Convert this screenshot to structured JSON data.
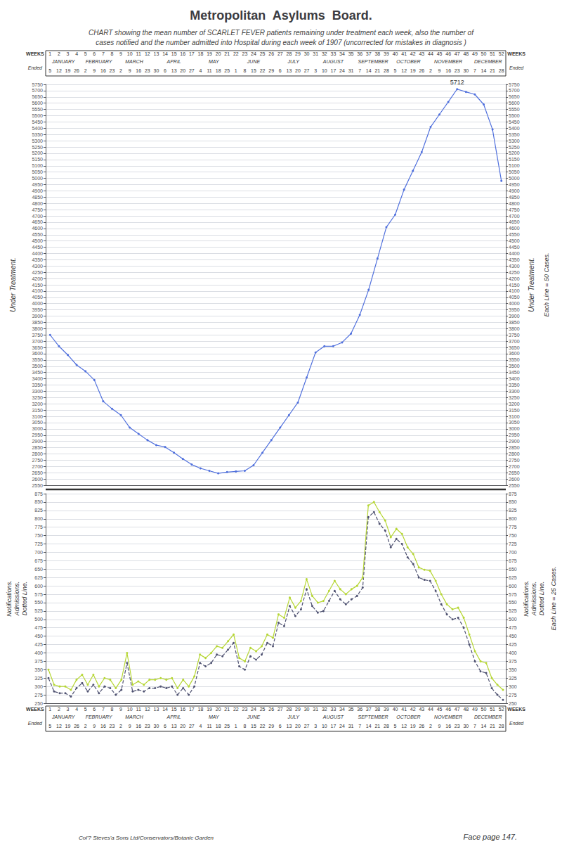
{
  "chart_data": [
    {
      "type": "line",
      "title": "Metropolitan  Asylums  Board.",
      "subtitle": "CHART showing the mean number of SCARLET FEVER patients remaining under treatment each week, also the number of\ncases notified and the number admitted into Hospital during each week of 1907 (uncorrected for mistakes in diagnosis )",
      "categories": [
        "1",
        "2",
        "3",
        "4",
        "5",
        "6",
        "7",
        "8",
        "9",
        "10",
        "11",
        "12",
        "13",
        "14",
        "15",
        "16",
        "17",
        "18",
        "19",
        "20",
        "21",
        "22",
        "23",
        "24",
        "25",
        "26",
        "27",
        "28",
        "29",
        "30",
        "31",
        "32",
        "33",
        "34",
        "35",
        "36",
        "37",
        "38",
        "39",
        "40",
        "41",
        "42",
        "43",
        "44",
        "45",
        "46",
        "47",
        "48",
        "49",
        "50",
        "51",
        "52"
      ],
      "week_ended": [
        5,
        12,
        19,
        26,
        2,
        9,
        16,
        23,
        2,
        9,
        16,
        23,
        30,
        6,
        13,
        20,
        27,
        4,
        11,
        18,
        25,
        1,
        8,
        15,
        22,
        29,
        6,
        13,
        20,
        27,
        3,
        10,
        17,
        24,
        31,
        7,
        14,
        21,
        28,
        5,
        12,
        19,
        26,
        2,
        9,
        16,
        23,
        30,
        7,
        14,
        21,
        28
      ],
      "months": [
        "JANUARY",
        "FEBRUARY",
        "MARCH",
        "APRIL",
        "MAY",
        "JUNE",
        "JULY",
        "AUGUST",
        "SEPTEMBER",
        "OCTOBER",
        "NOVEMBER",
        "DECEMBER"
      ],
      "month_starts_week": [
        1,
        5,
        9,
        13,
        18,
        22,
        27,
        31,
        36,
        40,
        44,
        49
      ],
      "month_ends_week": [
        4,
        8,
        12,
        17,
        21,
        26,
        30,
        35,
        39,
        43,
        48,
        52
      ],
      "weeks_label": "WEEKS",
      "ended_label": "Ended",
      "values": [
        3750,
        3660,
        3590,
        3510,
        3460,
        3390,
        3220,
        3160,
        3110,
        3010,
        2960,
        2910,
        2870,
        2855,
        2810,
        2760,
        2715,
        2685,
        2665,
        2645,
        2655,
        2660,
        2665,
        2710,
        2810,
        2910,
        3010,
        3110,
        3210,
        3410,
        3610,
        3660,
        3660,
        3690,
        3760,
        3910,
        4110,
        4360,
        4610,
        4710,
        4910,
        5060,
        5210,
        5410,
        5510,
        5610,
        5712,
        5690,
        5670,
        5590,
        5390,
        4980
      ],
      "marker": "circle",
      "line_style": "solid",
      "ylim": [
        2550,
        5750
      ],
      "yticks": [
        2550,
        2600,
        2650,
        2700,
        2750,
        2800,
        2850,
        2900,
        2950,
        3000,
        3050,
        3100,
        3150,
        3200,
        3250,
        3300,
        3350,
        3400,
        3450,
        3500,
        3550,
        3600,
        3650,
        3700,
        3750,
        3800,
        3850,
        3900,
        3950,
        4000,
        4050,
        4100,
        4150,
        4200,
        4250,
        4300,
        4350,
        4400,
        4450,
        4500,
        4550,
        4600,
        4650,
        4700,
        4750,
        4800,
        4850,
        4900,
        4950,
        5000,
        5050,
        5100,
        5150,
        5200,
        5250,
        5300,
        5350,
        5400,
        5450,
        5500,
        5550,
        5600,
        5650,
        5700,
        5750
      ],
      "y2lim": [
        2550,
        5750
      ],
      "y2ticks": [
        2550,
        2600,
        2650,
        2700,
        2750,
        2800,
        2850,
        2900,
        2950,
        3000,
        3050,
        3100,
        3150,
        3200,
        3250,
        3300,
        3350,
        3400,
        3450,
        3500,
        3550,
        3600,
        3650,
        3700,
        3750,
        3800,
        3850,
        3900,
        3950,
        4000,
        4050,
        4100,
        4150,
        4200,
        4250,
        4300,
        4350,
        4400,
        4450,
        4500,
        4550,
        4600,
        4650,
        4700,
        4750,
        4800,
        4850,
        4900,
        4950,
        5000,
        5050,
        5100,
        5150,
        5200,
        5250,
        5300,
        5350,
        5400,
        5450,
        5500,
        5550,
        5600,
        5650,
        5700,
        5750
      ],
      "grid": true,
      "side_label": "Under Treatment.",
      "scale_note": "Each Line = 50 Cases.",
      "annotations": [
        {
          "text": "5712",
          "x": "47",
          "y": 5712
        }
      ]
    },
    {
      "type": "line",
      "categories": [
        null,
        null,
        null,
        null,
        null,
        null,
        null,
        null,
        null,
        null,
        null,
        null,
        null,
        null,
        null,
        null,
        null,
        null,
        null,
        null,
        null,
        null,
        null,
        null,
        null,
        null,
        null,
        null,
        null,
        null,
        null,
        null,
        null,
        null,
        null,
        null,
        null,
        null,
        null,
        null,
        null,
        null,
        null,
        null,
        null,
        null,
        null,
        null,
        null,
        null,
        null,
        null,
        null,
        null,
        null,
        null,
        null,
        null,
        null,
        null,
        null,
        null,
        null,
        null,
        null,
        null,
        null,
        null,
        null,
        null,
        null,
        null,
        null,
        null,
        null,
        null,
        null,
        null,
        null,
        null,
        null,
        null
      ],
      "series": [
        {
          "line_style": "solid",
          "marker": "circle",
          "values": [
            350,
            305,
            300,
            300,
            290,
            320,
            335,
            305,
            335,
            300,
            325,
            320,
            295,
            320,
            400,
            305,
            315,
            305,
            320,
            320,
            325,
            320,
            325,
            295,
            320,
            300,
            330,
            395,
            385,
            400,
            420,
            415,
            435,
            455,
            385,
            375,
            415,
            405,
            420,
            455,
            445,
            515,
            505,
            565,
            535,
            555,
            620,
            570,
            550,
            555,
            585,
            615,
            590,
            575,
            590,
            600,
            625,
            840,
            850,
            820,
            795,
            745,
            770,
            755,
            715,
            695,
            655,
            648,
            645,
            615,
            575,
            545,
            530,
            535,
            505,
            455,
            405,
            375,
            370,
            325,
            305,
            290
          ]
        },
        {
          "line_style": "dashed",
          "marker": "circle",
          "values": [
            325,
            285,
            280,
            280,
            270,
            295,
            310,
            285,
            305,
            280,
            300,
            295,
            275,
            290,
            370,
            285,
            290,
            285,
            295,
            295,
            300,
            295,
            300,
            275,
            295,
            275,
            300,
            370,
            360,
            370,
            395,
            390,
            410,
            430,
            360,
            350,
            390,
            380,
            395,
            430,
            420,
            490,
            480,
            540,
            510,
            530,
            590,
            540,
            520,
            525,
            555,
            585,
            560,
            545,
            560,
            570,
            595,
            805,
            820,
            785,
            765,
            715,
            740,
            725,
            685,
            665,
            625,
            618,
            615,
            585,
            545,
            515,
            500,
            505,
            475,
            425,
            375,
            345,
            340,
            295,
            275,
            260
          ]
        }
      ],
      "ylim": [
        250,
        875
      ],
      "yticks": [
        250,
        275,
        300,
        325,
        350,
        375,
        400,
        425,
        450,
        475,
        500,
        525,
        550,
        575,
        600,
        625,
        650,
        675,
        700,
        725,
        750,
        775,
        800,
        825,
        850,
        875
      ],
      "y2lim": [
        250,
        875
      ],
      "y2ticks": [
        250,
        275,
        300,
        325,
        350,
        375,
        400,
        425,
        450,
        475,
        500,
        525,
        550,
        575,
        600,
        625,
        650,
        675,
        700,
        725,
        750,
        775,
        800,
        825,
        850,
        875
      ],
      "grid": true,
      "side_label_lines": [
        "Notifications.",
        "Admissions.",
        "Dotted Line."
      ],
      "scale_note": "Each Line = 25 Cases.",
      "face_page": "Face page 147.",
      "printer_line": "Col'? Steves'a Sons Ltd/Conservators/Botanic Garden"
    }
  ]
}
